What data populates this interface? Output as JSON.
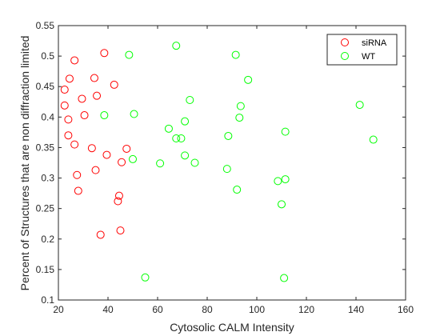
{
  "chart_data": {
    "type": "scatter",
    "xlabel": "Cytosolic CALM Intensity",
    "ylabel": "Percent of Structures that are non diffraction limited",
    "xlim": [
      20,
      160
    ],
    "ylim": [
      0.1,
      0.55
    ],
    "xticks": [
      "20",
      "40",
      "60",
      "80",
      "100",
      "120",
      "140",
      "160"
    ],
    "yticks": [
      "0.1",
      "0.15",
      "0.2",
      "0.25",
      "0.3",
      "0.35",
      "0.4",
      "0.45",
      "0.5",
      "0.55"
    ],
    "grid": false,
    "legend_position": "top-right",
    "marker": "open-circle",
    "series": [
      {
        "name": "siRNA",
        "color": "#ff0000",
        "points": [
          [
            38.5,
            0.505
          ],
          [
            26.5,
            0.493
          ],
          [
            24.5,
            0.463
          ],
          [
            34.5,
            0.464
          ],
          [
            22.5,
            0.445
          ],
          [
            42.5,
            0.453
          ],
          [
            35.5,
            0.435
          ],
          [
            29.5,
            0.43
          ],
          [
            22.5,
            0.419
          ],
          [
            30.5,
            0.403
          ],
          [
            24.0,
            0.396
          ],
          [
            24.0,
            0.37
          ],
          [
            26.5,
            0.355
          ],
          [
            33.5,
            0.349
          ],
          [
            47.5,
            0.348
          ],
          [
            39.5,
            0.338
          ],
          [
            45.5,
            0.326
          ],
          [
            35.0,
            0.313
          ],
          [
            27.5,
            0.305
          ],
          [
            28.0,
            0.279
          ],
          [
            44.5,
            0.271
          ],
          [
            44.0,
            0.262
          ],
          [
            37.0,
            0.207
          ],
          [
            45.0,
            0.214
          ]
        ]
      },
      {
        "name": "WT",
        "color": "#00ff00",
        "points": [
          [
            67.5,
            0.517
          ],
          [
            48.5,
            0.502
          ],
          [
            91.5,
            0.502
          ],
          [
            96.5,
            0.461
          ],
          [
            73.0,
            0.428
          ],
          [
            93.5,
            0.418
          ],
          [
            141.5,
            0.42
          ],
          [
            38.5,
            0.403
          ],
          [
            50.5,
            0.405
          ],
          [
            93.0,
            0.399
          ],
          [
            71.0,
            0.393
          ],
          [
            64.5,
            0.381
          ],
          [
            111.5,
            0.376
          ],
          [
            67.5,
            0.365
          ],
          [
            69.5,
            0.365
          ],
          [
            88.5,
            0.369
          ],
          [
            147.0,
            0.363
          ],
          [
            71.0,
            0.337
          ],
          [
            50.0,
            0.331
          ],
          [
            61.0,
            0.324
          ],
          [
            75.0,
            0.325
          ],
          [
            88.0,
            0.315
          ],
          [
            108.5,
            0.295
          ],
          [
            111.5,
            0.298
          ],
          [
            92.0,
            0.281
          ],
          [
            110.0,
            0.257
          ],
          [
            55.0,
            0.137
          ],
          [
            111.0,
            0.136
          ]
        ]
      }
    ]
  }
}
